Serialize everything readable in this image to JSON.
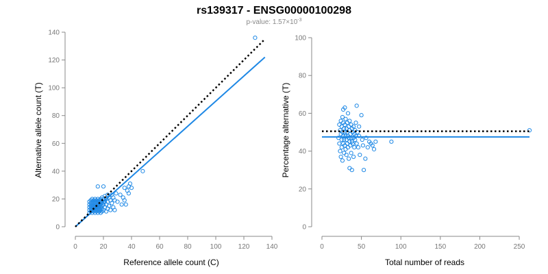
{
  "header": {
    "title": "rs139317 - ENSG00000100298",
    "pvalue_prefix": "p-value: 1.57×10",
    "pvalue_exponent": "-3"
  },
  "colors": {
    "points": "#1E88E5",
    "fit": "#1E88E5",
    "reference": "#000000",
    "axis": "#888888"
  },
  "chart_data": [
    {
      "type": "scatter",
      "name": "allele-counts",
      "xlabel": "Reference allele count (C)",
      "ylabel": "Alternative allele count (T)",
      "xlim": [
        0,
        140
      ],
      "ylim": [
        0,
        140
      ],
      "xticks": [
        0,
        20,
        40,
        60,
        80,
        100,
        120,
        140
      ],
      "yticks": [
        0,
        20,
        40,
        60,
        80,
        100,
        120,
        140
      ],
      "reference_line": {
        "x": [
          0,
          135
        ],
        "y": [
          0,
          135
        ],
        "style": "dotted"
      },
      "fit_line": {
        "x": [
          0,
          135
        ],
        "y": [
          0,
          122
        ],
        "style": "solid"
      },
      "points": [
        [
          10,
          10
        ],
        [
          10,
          12
        ],
        [
          10,
          14
        ],
        [
          10,
          16
        ],
        [
          10,
          18
        ],
        [
          11,
          11
        ],
        [
          11,
          13
        ],
        [
          11,
          15
        ],
        [
          11,
          17
        ],
        [
          11,
          19
        ],
        [
          12,
          10
        ],
        [
          12,
          12
        ],
        [
          12,
          14
        ],
        [
          12,
          16
        ],
        [
          12,
          18
        ],
        [
          12,
          20
        ],
        [
          13,
          11
        ],
        [
          13,
          13
        ],
        [
          13,
          15
        ],
        [
          13,
          17
        ],
        [
          13,
          19
        ],
        [
          14,
          10
        ],
        [
          14,
          12
        ],
        [
          14,
          14
        ],
        [
          14,
          16
        ],
        [
          14,
          18
        ],
        [
          14,
          20
        ],
        [
          15,
          11
        ],
        [
          15,
          13
        ],
        [
          15,
          15
        ],
        [
          15,
          17
        ],
        [
          15,
          19
        ],
        [
          16,
          10
        ],
        [
          16,
          12
        ],
        [
          16,
          14
        ],
        [
          16,
          16
        ],
        [
          16,
          18
        ],
        [
          16,
          20
        ],
        [
          16,
          29
        ],
        [
          17,
          11
        ],
        [
          17,
          13
        ],
        [
          17,
          15
        ],
        [
          17,
          17
        ],
        [
          17,
          19
        ],
        [
          18,
          10
        ],
        [
          18,
          12
        ],
        [
          18,
          14
        ],
        [
          18,
          16
        ],
        [
          18,
          18
        ],
        [
          18,
          20
        ],
        [
          19,
          11
        ],
        [
          19,
          13
        ],
        [
          19,
          15
        ],
        [
          19,
          17
        ],
        [
          19,
          21
        ],
        [
          20,
          12
        ],
        [
          20,
          16
        ],
        [
          20,
          18
        ],
        [
          20,
          20
        ],
        [
          20,
          29
        ],
        [
          21,
          14
        ],
        [
          21,
          18
        ],
        [
          21,
          22
        ],
        [
          22,
          11
        ],
        [
          22,
          16
        ],
        [
          22,
          20
        ],
        [
          23,
          13
        ],
        [
          23,
          18
        ],
        [
          23,
          23
        ],
        [
          24,
          15
        ],
        [
          24,
          21
        ],
        [
          25,
          12
        ],
        [
          25,
          19
        ],
        [
          26,
          17
        ],
        [
          26,
          23
        ],
        [
          27,
          14
        ],
        [
          27,
          21
        ],
        [
          28,
          12
        ],
        [
          28,
          19
        ],
        [
          29,
          24
        ],
        [
          30,
          18
        ],
        [
          32,
          23
        ],
        [
          33,
          16
        ],
        [
          34,
          21
        ],
        [
          35,
          19
        ],
        [
          35,
          28
        ],
        [
          36,
          16
        ],
        [
          37,
          26
        ],
        [
          38,
          24
        ],
        [
          38,
          29
        ],
        [
          39,
          31
        ],
        [
          40,
          28
        ],
        [
          48,
          40
        ],
        [
          128,
          136
        ]
      ]
    },
    {
      "type": "scatter",
      "name": "percentage-alternative",
      "xlabel": "Total number of reads",
      "ylabel": "Percentage alternative (T)",
      "xlim": [
        0,
        263
      ],
      "ylim": [
        0,
        100
      ],
      "xticks": [
        0,
        50,
        100,
        150,
        200,
        250
      ],
      "yticks": [
        0,
        20,
        40,
        60,
        80,
        100
      ],
      "reference_line": {
        "x": [
          0,
          263
        ],
        "y": [
          50.5,
          50.5
        ],
        "style": "dotted"
      },
      "fit_line": {
        "x": [
          0,
          263
        ],
        "y": [
          47.5,
          47.5
        ],
        "style": "solid"
      },
      "points": [
        [
          21,
          47
        ],
        [
          22,
          54
        ],
        [
          22,
          44
        ],
        [
          23,
          51
        ],
        [
          23,
          40
        ],
        [
          24,
          56
        ],
        [
          24,
          49
        ],
        [
          24,
          37
        ],
        [
          25,
          53
        ],
        [
          25,
          46
        ],
        [
          25,
          42
        ],
        [
          26,
          58
        ],
        [
          26,
          50
        ],
        [
          26,
          35
        ],
        [
          27,
          55
        ],
        [
          27,
          48
        ],
        [
          27,
          44
        ],
        [
          27,
          62
        ],
        [
          28,
          52
        ],
        [
          28,
          46
        ],
        [
          28,
          39
        ],
        [
          29,
          54
        ],
        [
          29,
          50
        ],
        [
          29,
          43
        ],
        [
          29,
          63
        ],
        [
          30,
          48
        ],
        [
          30,
          41
        ],
        [
          30,
          57
        ],
        [
          31,
          52
        ],
        [
          31,
          46
        ],
        [
          31,
          38
        ],
        [
          32,
          55
        ],
        [
          32,
          50
        ],
        [
          32,
          44
        ],
        [
          33,
          60
        ],
        [
          33,
          48
        ],
        [
          33,
          42
        ],
        [
          34,
          53
        ],
        [
          34,
          47
        ],
        [
          34,
          36
        ],
        [
          35,
          56
        ],
        [
          35,
          51
        ],
        [
          35,
          45
        ],
        [
          35,
          31
        ],
        [
          36,
          49
        ],
        [
          36,
          43
        ],
        [
          37,
          54
        ],
        [
          37,
          47
        ],
        [
          37,
          39
        ],
        [
          38,
          52
        ],
        [
          38,
          45
        ],
        [
          38,
          30
        ],
        [
          39,
          50
        ],
        [
          39,
          44
        ],
        [
          40,
          53
        ],
        [
          40,
          47
        ],
        [
          40,
          37
        ],
        [
          41,
          49
        ],
        [
          41,
          42
        ],
        [
          42,
          51
        ],
        [
          42,
          46
        ],
        [
          43,
          48
        ],
        [
          43,
          55
        ],
        [
          44,
          44
        ],
        [
          44,
          64
        ],
        [
          45,
          50
        ],
        [
          46,
          42
        ],
        [
          47,
          48
        ],
        [
          47,
          53
        ],
        [
          48,
          38
        ],
        [
          50,
          59
        ],
        [
          51,
          46
        ],
        [
          52,
          43
        ],
        [
          53,
          30
        ],
        [
          55,
          36
        ],
        [
          56,
          47
        ],
        [
          58,
          42
        ],
        [
          60,
          45
        ],
        [
          62,
          44
        ],
        [
          64,
          43
        ],
        [
          66,
          41
        ],
        [
          68,
          45
        ],
        [
          88,
          45
        ],
        [
          263,
          51
        ]
      ]
    }
  ]
}
